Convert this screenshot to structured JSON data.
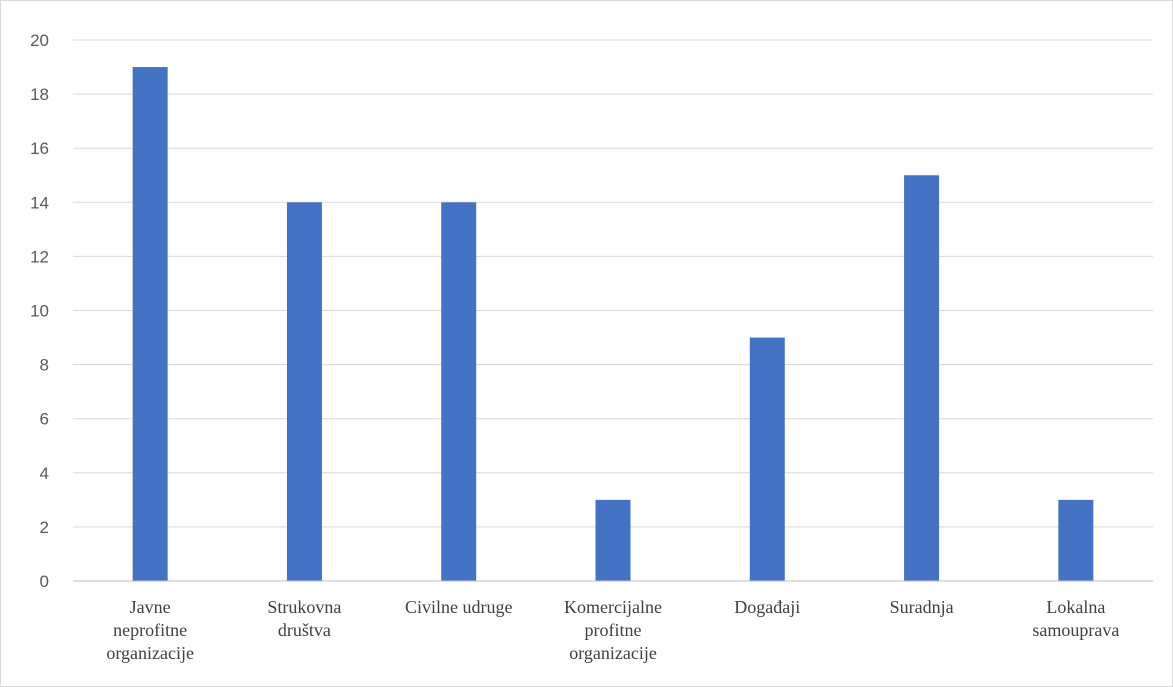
{
  "chart_data": {
    "type": "bar",
    "categories": [
      [
        "Javne",
        "neprofitne",
        "organizacije"
      ],
      [
        "Strukovna",
        "društva"
      ],
      [
        "Civilne udruge"
      ],
      [
        "Komercijalne",
        "profitne",
        "organizacije"
      ],
      [
        "Događaji"
      ],
      [
        "Suradnja"
      ],
      [
        "Lokalna",
        "samouprava"
      ]
    ],
    "values": [
      19,
      14,
      14,
      3,
      9,
      15,
      3
    ],
    "ylim": [
      0,
      20
    ],
    "yticks": [
      0,
      2,
      4,
      6,
      8,
      10,
      12,
      14,
      16,
      18,
      20
    ],
    "grid": true,
    "bar_color": "#4472c4",
    "title": "",
    "xlabel": "",
    "ylabel": ""
  }
}
